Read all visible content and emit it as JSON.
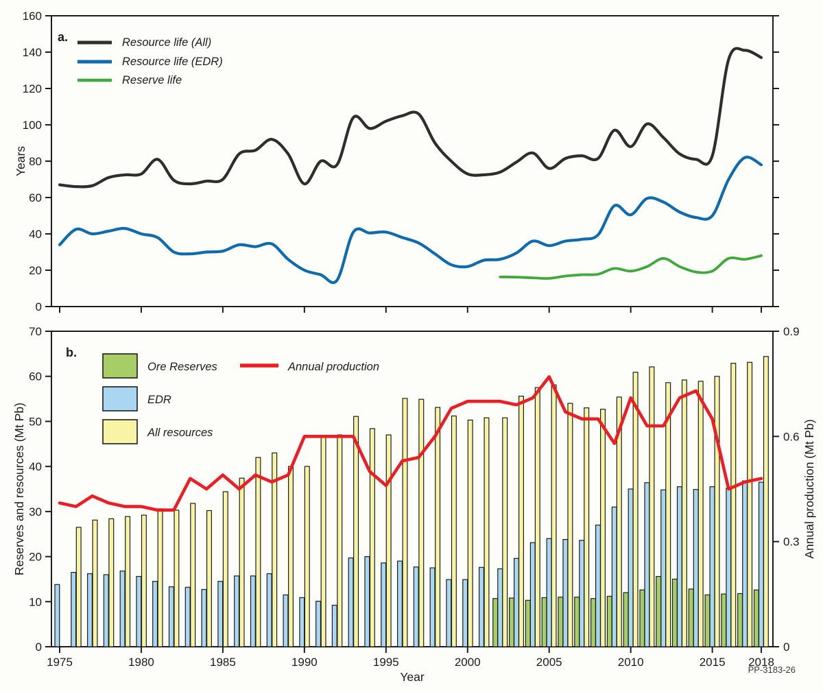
{
  "figure": {
    "code_label": "PP-3183-26",
    "background": "#fdfdfa",
    "frame_color": "#1c1c1c"
  },
  "chart_data": [
    {
      "panel": "a",
      "panel_label": "a.",
      "type": "line",
      "ylabel": "Years",
      "ylim": [
        0,
        160
      ],
      "yticks": [
        0,
        20,
        40,
        60,
        80,
        100,
        120,
        140,
        160
      ],
      "xlim": [
        1974.5,
        2018.7
      ],
      "xticks": [
        1975,
        1980,
        1985,
        1990,
        1995,
        2000,
        2005,
        2010,
        2015,
        2018
      ],
      "x_tick_labels_shown": false,
      "grid": false,
      "legend_position": "top-left",
      "x": [
        1975,
        1976,
        1977,
        1978,
        1979,
        1980,
        1981,
        1982,
        1983,
        1984,
        1985,
        1986,
        1987,
        1988,
        1989,
        1990,
        1991,
        1992,
        1993,
        1994,
        1995,
        1996,
        1997,
        1998,
        1999,
        2000,
        2001,
        2002,
        2003,
        2004,
        2005,
        2006,
        2007,
        2008,
        2009,
        2010,
        2011,
        2012,
        2013,
        2014,
        2015,
        2016,
        2017,
        2018
      ],
      "series": [
        {
          "name": "Resource life (All)",
          "color": "#2e2e2e",
          "values": [
            67,
            66,
            66.5,
            71,
            72.5,
            73,
            81,
            69.5,
            67.5,
            69,
            70,
            84,
            86,
            92,
            84,
            67.5,
            80,
            78,
            104,
            98,
            102,
            105,
            106,
            90,
            80,
            73,
            72.5,
            74,
            79.5,
            84.5,
            76,
            81.5,
            83,
            81.5,
            97,
            88,
            100.5,
            93,
            84,
            81,
            83,
            136,
            141,
            137
          ]
        },
        {
          "name": "Resource life (EDR)",
          "color": "#0f6bb0",
          "values": [
            34,
            42.5,
            40,
            41.5,
            43,
            40,
            38,
            30,
            29,
            30,
            30.5,
            34,
            33,
            34.5,
            26,
            20,
            17.5,
            14.5,
            41,
            40.5,
            41,
            38,
            35,
            29,
            23,
            22,
            25.5,
            26,
            29.5,
            36,
            33.5,
            36,
            37,
            39.5,
            55.5,
            50.5,
            59.5,
            57.5,
            52,
            49,
            50,
            70,
            82,
            78
          ]
        },
        {
          "name": "Reserve life",
          "color": "#3fa93c",
          "values": [
            null,
            null,
            null,
            null,
            null,
            null,
            null,
            null,
            null,
            null,
            null,
            null,
            null,
            null,
            null,
            null,
            null,
            null,
            null,
            null,
            null,
            null,
            null,
            null,
            null,
            null,
            null,
            16.3,
            16.2,
            15.8,
            15.5,
            16.8,
            17.5,
            17.8,
            21,
            19.5,
            22,
            26.5,
            22,
            19,
            19.5,
            26.5,
            26,
            28
          ]
        }
      ]
    },
    {
      "panel": "b",
      "panel_label": "b.",
      "type": "bar+line",
      "xlabel": "Year",
      "ylabel_left": "Reserves and resources (Mt Pb)",
      "ylabel_right": "Annual production (Mt Pb)",
      "ylim_left": [
        0,
        70
      ],
      "ylim_right": [
        0,
        0.9
      ],
      "yticks_left": [
        0,
        10,
        20,
        30,
        40,
        50,
        60,
        70
      ],
      "yticks_right": [
        0,
        0.3,
        0.6,
        0.9
      ],
      "xlim": [
        1974.5,
        2018.7
      ],
      "xticks": [
        1975,
        1980,
        1985,
        1990,
        1995,
        2000,
        2005,
        2010,
        2015,
        2018
      ],
      "grid": false,
      "x": [
        1975,
        1976,
        1977,
        1978,
        1979,
        1980,
        1981,
        1982,
        1983,
        1984,
        1985,
        1986,
        1987,
        1988,
        1989,
        1990,
        1991,
        1992,
        1993,
        1994,
        1995,
        1996,
        1997,
        1998,
        1999,
        2000,
        2001,
        2002,
        2003,
        2004,
        2005,
        2006,
        2007,
        2008,
        2009,
        2010,
        2011,
        2012,
        2013,
        2014,
        2015,
        2016,
        2017,
        2018
      ],
      "bar_series": [
        {
          "name": "Ore Reserves",
          "color": "#a6cd66",
          "values": [
            null,
            null,
            null,
            null,
            null,
            null,
            null,
            null,
            null,
            null,
            null,
            null,
            null,
            null,
            null,
            null,
            null,
            null,
            null,
            null,
            null,
            null,
            null,
            null,
            null,
            null,
            null,
            10.7,
            10.8,
            10.3,
            10.9,
            11,
            11,
            10.7,
            11.2,
            12,
            12.6,
            15.6,
            15,
            12.8,
            11.5,
            11.7,
            11.8,
            12.6
          ]
        },
        {
          "name": "EDR",
          "color": "#a9d7f2",
          "values": [
            13.8,
            16.5,
            16.2,
            16,
            16.8,
            15.6,
            14.5,
            13.3,
            13.2,
            12.7,
            14.5,
            15.7,
            15.7,
            16.2,
            11.5,
            10.9,
            10.1,
            9.2,
            19.7,
            20,
            18.6,
            19,
            17.7,
            17.5,
            14.9,
            14.9,
            17.6,
            17.3,
            19.6,
            23.1,
            24,
            23.8,
            23.6,
            27,
            31,
            35,
            36.4,
            34.8,
            35.5,
            34.9,
            35.5,
            35.2,
            36.8,
            36.5
          ]
        },
        {
          "name": "All resources",
          "color": "#f7f4a6",
          "values": [
            null,
            26.5,
            28.1,
            28.4,
            28.9,
            29.2,
            30.6,
            30.3,
            31.8,
            30.2,
            34.4,
            37.4,
            42,
            43,
            40,
            40,
            46.5,
            47,
            51.1,
            48.4,
            47,
            55.1,
            54.9,
            53.1,
            51.2,
            50.3,
            50.8,
            50.8,
            55.6,
            57.5,
            58.1,
            54,
            53,
            52.7,
            55.4,
            60.9,
            62.1,
            58.6,
            59.2,
            58.9,
            60,
            62.9,
            63.1,
            64.4
          ]
        }
      ],
      "line_series": [
        {
          "name": "Annual production",
          "color": "#ee1c23",
          "axis": "right",
          "values": [
            0.41,
            0.4,
            0.43,
            0.41,
            0.4,
            0.4,
            0.39,
            0.39,
            0.48,
            0.45,
            0.49,
            0.45,
            0.49,
            0.47,
            0.49,
            0.6,
            0.6,
            0.6,
            0.6,
            0.5,
            0.46,
            0.53,
            0.54,
            0.6,
            0.68,
            0.7,
            0.7,
            0.7,
            0.69,
            0.71,
            0.77,
            0.67,
            0.65,
            0.65,
            0.58,
            0.71,
            0.63,
            0.63,
            0.71,
            0.73,
            0.65,
            0.45,
            0.47,
            0.48
          ]
        }
      ]
    }
  ]
}
